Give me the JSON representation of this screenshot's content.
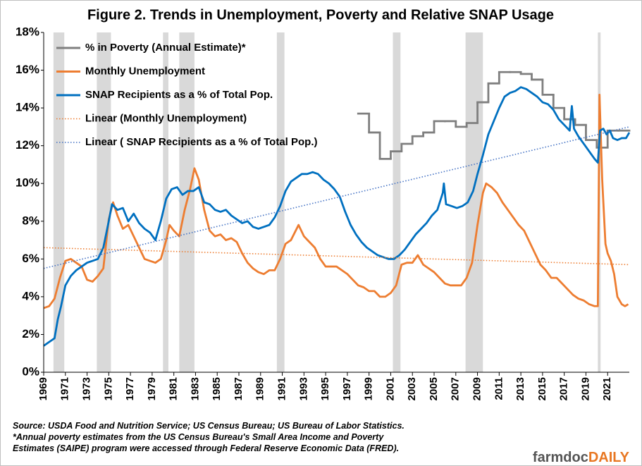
{
  "chart_data": {
    "type": "line",
    "title": "Figure 2. Trends in Unemployment, Poverty and Relative SNAP Usage",
    "xlim": [
      1969,
      2023
    ],
    "xticks": [
      1969,
      1971,
      1973,
      1975,
      1977,
      1979,
      1981,
      1983,
      1985,
      1987,
      1989,
      1991,
      1993,
      1995,
      1997,
      1999,
      2001,
      2003,
      2005,
      2007,
      2009,
      2011,
      2013,
      2015,
      2017,
      2019,
      2021
    ],
    "ylim": [
      0,
      18
    ],
    "yticks": [
      {
        "value": 0,
        "label": "0%"
      },
      {
        "value": 2,
        "label": "2%"
      },
      {
        "value": 4,
        "label": "4%"
      },
      {
        "value": 6,
        "label": "6%"
      },
      {
        "value": 8,
        "label": "8%"
      },
      {
        "value": 10,
        "label": "10%"
      },
      {
        "value": 12,
        "label": "12%"
      },
      {
        "value": 14,
        "label": "14%"
      },
      {
        "value": 16,
        "label": "16%"
      },
      {
        "value": 18,
        "label": "18%"
      }
    ],
    "recession_color": "#d9d9d9",
    "recessions": [
      [
        1969.9,
        1970.9
      ],
      [
        1973.9,
        1975.2
      ],
      [
        1980.0,
        1980.5
      ],
      [
        1981.5,
        1982.9
      ],
      [
        1990.5,
        1991.2
      ],
      [
        2001.2,
        2001.9
      ],
      [
        2007.9,
        2009.5
      ],
      [
        2020.1,
        2020.35
      ]
    ],
    "series": [
      {
        "name": "% in Poverty (Annual Estimate)*",
        "color": "#7f7f7f",
        "style": "step",
        "x": [
          1998,
          1999,
          2000,
          2001,
          2002,
          2003,
          2004,
          2005,
          2006,
          2007,
          2008,
          2009,
          2010,
          2011,
          2012,
          2013,
          2014,
          2015,
          2016,
          2017,
          2018,
          2019,
          2020,
          2021,
          2022
        ],
        "values": [
          13.7,
          12.7,
          11.3,
          11.7,
          12.1,
          12.5,
          12.7,
          13.3,
          13.3,
          13.0,
          13.2,
          14.3,
          15.3,
          15.9,
          15.9,
          15.8,
          15.5,
          14.7,
          14.0,
          13.4,
          13.1,
          12.3,
          11.9,
          12.8,
          12.8
        ]
      },
      {
        "name": "Monthly Unemployment",
        "color": "#ed7d31",
        "style": "line",
        "x": [
          1969.0,
          1969.5,
          1970.0,
          1970.5,
          1971.0,
          1971.5,
          1972.0,
          1972.5,
          1973.0,
          1973.5,
          1974.0,
          1974.5,
          1975.0,
          1975.4,
          1975.8,
          1976.3,
          1976.8,
          1977.3,
          1977.8,
          1978.3,
          1978.8,
          1979.3,
          1979.8,
          1980.3,
          1980.6,
          1981.0,
          1981.5,
          1982.0,
          1982.5,
          1982.9,
          1983.3,
          1983.8,
          1984.3,
          1984.8,
          1985.3,
          1985.8,
          1986.3,
          1986.8,
          1987.3,
          1987.8,
          1988.3,
          1988.8,
          1989.3,
          1989.8,
          1990.3,
          1990.8,
          1991.3,
          1991.8,
          1992.5,
          1993.0,
          1993.5,
          1994.0,
          1994.5,
          1995.0,
          1995.5,
          1996.0,
          1996.5,
          1997.0,
          1997.5,
          1998.0,
          1998.5,
          1999.0,
          1999.5,
          2000.0,
          2000.5,
          2001.0,
          2001.5,
          2002.0,
          2002.5,
          2003.0,
          2003.5,
          2004.0,
          2004.5,
          2005.0,
          2005.5,
          2006.0,
          2006.5,
          2007.0,
          2007.5,
          2008.0,
          2008.5,
          2009.0,
          2009.5,
          2009.8,
          2010.3,
          2010.8,
          2011.3,
          2011.8,
          2012.3,
          2012.8,
          2013.3,
          2013.8,
          2014.3,
          2014.8,
          2015.3,
          2015.8,
          2016.3,
          2016.8,
          2017.3,
          2017.8,
          2018.3,
          2018.8,
          2019.3,
          2019.8,
          2020.1,
          2020.25,
          2020.5,
          2020.8,
          2021.0,
          2021.3,
          2021.6,
          2021.9,
          2022.3,
          2022.6,
          2022.9
        ],
        "values": [
          3.4,
          3.5,
          3.9,
          5.0,
          5.9,
          6.0,
          5.8,
          5.6,
          4.9,
          4.8,
          5.1,
          5.5,
          8.1,
          9.0,
          8.3,
          7.6,
          7.8,
          7.2,
          6.6,
          6.0,
          5.9,
          5.8,
          6.0,
          7.0,
          7.8,
          7.5,
          7.2,
          8.6,
          9.7,
          10.8,
          10.2,
          8.6,
          7.5,
          7.2,
          7.3,
          7.0,
          7.1,
          6.9,
          6.3,
          5.8,
          5.5,
          5.3,
          5.2,
          5.4,
          5.4,
          6.0,
          6.8,
          7.0,
          7.8,
          7.2,
          6.9,
          6.6,
          6.0,
          5.6,
          5.6,
          5.6,
          5.4,
          5.2,
          4.9,
          4.6,
          4.5,
          4.3,
          4.3,
          4.0,
          4.0,
          4.2,
          4.6,
          5.7,
          5.8,
          5.8,
          6.2,
          5.7,
          5.5,
          5.3,
          5.0,
          4.7,
          4.6,
          4.6,
          4.6,
          5.0,
          5.8,
          7.8,
          9.5,
          10.0,
          9.8,
          9.5,
          9.0,
          8.6,
          8.2,
          7.8,
          7.5,
          6.9,
          6.3,
          5.7,
          5.4,
          5.0,
          5.0,
          4.7,
          4.4,
          4.1,
          3.9,
          3.8,
          3.6,
          3.5,
          3.5,
          14.7,
          10.2,
          6.8,
          6.3,
          5.9,
          5.2,
          4.0,
          3.6,
          3.5,
          3.6
        ]
      },
      {
        "name": "SNAP Recipients as a % of Total Pop.",
        "color": "#0070c0",
        "style": "line",
        "x": [
          1969.0,
          1969.5,
          1970.0,
          1970.3,
          1970.6,
          1971.0,
          1971.5,
          1972.0,
          1972.5,
          1973.0,
          1973.5,
          1974.0,
          1974.5,
          1975.0,
          1975.3,
          1975.8,
          1976.3,
          1976.8,
          1977.3,
          1977.8,
          1978.3,
          1978.8,
          1979.3,
          1979.8,
          1980.3,
          1980.8,
          1981.3,
          1981.8,
          1982.3,
          1982.8,
          1983.3,
          1983.8,
          1984.3,
          1984.8,
          1985.3,
          1985.8,
          1986.3,
          1986.8,
          1987.3,
          1987.8,
          1988.3,
          1988.8,
          1989.3,
          1989.8,
          1990.3,
          1990.8,
          1991.3,
          1991.8,
          1992.3,
          1992.8,
          1993.3,
          1993.8,
          1994.3,
          1994.8,
          1995.3,
          1995.8,
          1996.3,
          1996.8,
          1997.3,
          1997.8,
          1998.3,
          1998.8,
          1999.3,
          1999.8,
          2000.3,
          2000.8,
          2001.3,
          2001.8,
          2002.3,
          2002.8,
          2003.3,
          2003.8,
          2004.3,
          2004.8,
          2005.3,
          2005.8,
          2005.9,
          2006.1,
          2006.6,
          2007.1,
          2007.6,
          2008.1,
          2008.6,
          2009.0,
          2009.5,
          2010.0,
          2010.5,
          2011.0,
          2011.5,
          2012.0,
          2012.5,
          2013.0,
          2013.5,
          2014.0,
          2014.5,
          2015.0,
          2015.5,
          2016.0,
          2016.5,
          2017.0,
          2017.5,
          2017.7,
          2017.9,
          2018.3,
          2018.8,
          2019.3,
          2019.8,
          2020.1,
          2020.3,
          2020.6,
          2020.9,
          2021.2,
          2021.5,
          2021.9,
          2022.3,
          2022.7,
          2023.0
        ],
        "values": [
          1.4,
          1.6,
          1.8,
          2.8,
          3.5,
          4.6,
          5.1,
          5.4,
          5.6,
          5.8,
          5.9,
          6.0,
          6.6,
          8.0,
          8.9,
          8.6,
          8.7,
          8.0,
          8.4,
          7.9,
          7.6,
          7.4,
          7.0,
          8.0,
          9.2,
          9.7,
          9.8,
          9.4,
          9.6,
          9.6,
          9.8,
          9.0,
          8.9,
          8.6,
          8.5,
          8.6,
          8.3,
          8.1,
          7.9,
          8.0,
          7.7,
          7.6,
          7.7,
          7.8,
          8.2,
          8.8,
          9.6,
          10.1,
          10.3,
          10.5,
          10.5,
          10.6,
          10.5,
          10.2,
          10.0,
          9.7,
          9.3,
          8.5,
          7.8,
          7.3,
          6.9,
          6.6,
          6.4,
          6.2,
          6.1,
          6.0,
          6.0,
          6.2,
          6.5,
          6.9,
          7.3,
          7.6,
          7.9,
          8.3,
          8.6,
          9.5,
          10.0,
          8.9,
          8.8,
          8.7,
          8.8,
          9.0,
          9.6,
          10.5,
          11.5,
          12.6,
          13.3,
          14.0,
          14.6,
          14.8,
          14.9,
          15.1,
          15.0,
          14.8,
          14.6,
          14.3,
          14.2,
          13.9,
          13.4,
          13.1,
          12.8,
          14.1,
          12.9,
          12.5,
          12.1,
          11.7,
          11.3,
          11.1,
          12.8,
          12.9,
          12.6,
          12.8,
          12.4,
          12.3,
          12.4,
          12.4,
          12.7
        ]
      },
      {
        "name": "Linear (Monthly Unemployment)",
        "color": "#ed7d31",
        "style": "dotted",
        "x": [
          1969,
          2023
        ],
        "values": [
          6.6,
          5.7
        ]
      },
      {
        "name": "Linear ( SNAP Recipients as a % of Total Pop.)",
        "color": "#4472c4",
        "style": "dotted",
        "x": [
          1969,
          2023
        ],
        "values": [
          5.5,
          13.0
        ]
      }
    ],
    "notes": [
      "Source: USDA  Food and Nutrition Service; US Census Bureau; US Bureau of Labor Statistics.",
      "*Annual poverty estimates from the US Census Bureau's Small Area Income and Poverty",
      "Estimates (SAIPE) program were accessed through Federal Reserve Economic Data (FRED)."
    ],
    "logo": [
      "farmdoc",
      "DAILY"
    ]
  }
}
